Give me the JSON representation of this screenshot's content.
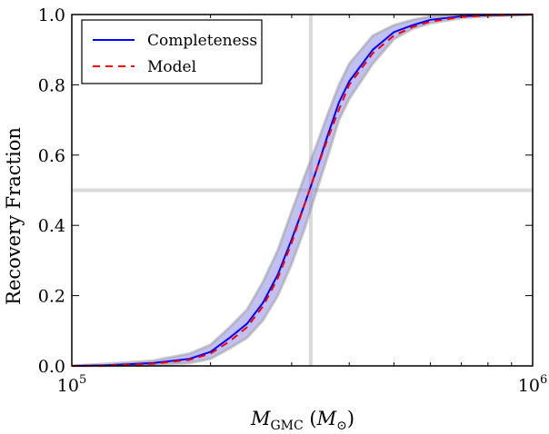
{
  "chart_data": {
    "type": "line",
    "xscale": "log",
    "xlim": [
      100000,
      1000000
    ],
    "ylim": [
      0.0,
      1.0
    ],
    "x_ticks": [
      {
        "value": 100000,
        "mantissa": "10",
        "exponent": "5"
      },
      {
        "value": 1000000,
        "mantissa": "10",
        "exponent": "6"
      }
    ],
    "y_ticks": [
      {
        "value": 0.0,
        "label": "0.0"
      },
      {
        "value": 0.2,
        "label": "0.2"
      },
      {
        "value": 0.4,
        "label": "0.4"
      },
      {
        "value": 0.6,
        "label": "0.6"
      },
      {
        "value": 0.8,
        "label": "0.8"
      },
      {
        "value": 1.0,
        "label": "1.0"
      }
    ],
    "xlabel": {
      "symbol": "M",
      "subscript": "GMC",
      "unit_symbol": "M",
      "unit_subscript": "⊙"
    },
    "ylabel": "Recovery Fraction",
    "legend_placement": "top-left",
    "reference_lines": {
      "x": 330000,
      "y": 0.5,
      "color": "#d9d9d9"
    },
    "band_color": "#8c8ce6",
    "series": [
      {
        "name": "Completeness",
        "style": "solid",
        "color": "#0000ff",
        "x": [
          100000,
          120000,
          150000,
          180000,
          200000,
          220000,
          240000,
          260000,
          280000,
          300000,
          320000,
          340000,
          360000,
          380000,
          400000,
          450000,
          500000,
          550000,
          600000,
          700000,
          800000,
          1000000
        ],
        "y": [
          0.0,
          0.002,
          0.008,
          0.02,
          0.04,
          0.08,
          0.12,
          0.18,
          0.26,
          0.36,
          0.46,
          0.56,
          0.66,
          0.75,
          0.81,
          0.9,
          0.95,
          0.97,
          0.985,
          0.995,
          0.998,
          1.0
        ],
        "lower": [
          0.0,
          0.0,
          0.002,
          0.008,
          0.02,
          0.05,
          0.08,
          0.13,
          0.2,
          0.29,
          0.39,
          0.5,
          0.6,
          0.7,
          0.76,
          0.86,
          0.93,
          0.96,
          0.975,
          0.99,
          0.995,
          1.0
        ],
        "upper": [
          0.0,
          0.006,
          0.015,
          0.035,
          0.06,
          0.11,
          0.16,
          0.24,
          0.33,
          0.44,
          0.54,
          0.63,
          0.72,
          0.8,
          0.86,
          0.94,
          0.97,
          0.985,
          0.995,
          1.0,
          1.0,
          1.0
        ]
      },
      {
        "name": "Model",
        "style": "dashed",
        "color": "#ff0000",
        "x": [
          100000,
          120000,
          150000,
          180000,
          200000,
          220000,
          240000,
          260000,
          280000,
          300000,
          320000,
          340000,
          360000,
          380000,
          400000,
          450000,
          500000,
          550000,
          600000,
          700000,
          800000,
          1000000
        ],
        "y": [
          0.0,
          0.001,
          0.006,
          0.017,
          0.035,
          0.07,
          0.11,
          0.17,
          0.25,
          0.35,
          0.46,
          0.56,
          0.65,
          0.73,
          0.8,
          0.89,
          0.94,
          0.965,
          0.98,
          0.993,
          0.997,
          1.0
        ]
      }
    ]
  }
}
